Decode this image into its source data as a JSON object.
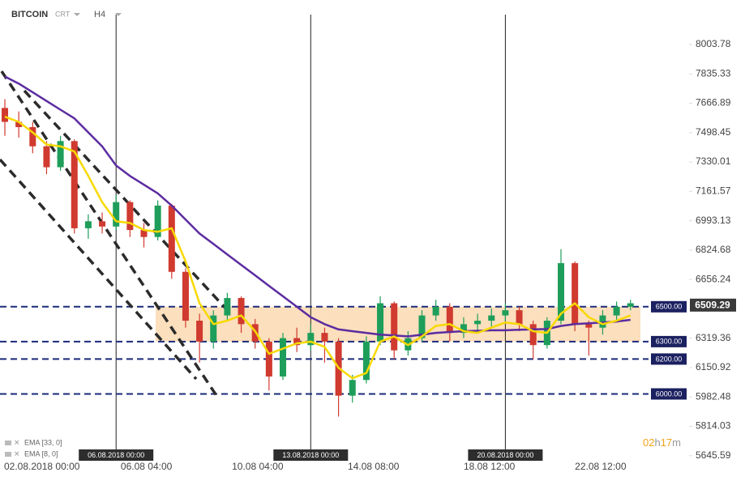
{
  "header": {
    "symbol": "BITCOIN",
    "sub": "CRT",
    "timeframe": "H4"
  },
  "chart_data": {
    "type": "candlestick",
    "x": [
      "02.08 00:00",
      "02.08 12:00",
      "03.08 00:00",
      "03.08 12:00",
      "04.08 00:00",
      "04.08 12:00",
      "05.08 00:00",
      "05.08 12:00",
      "06.08 00:00",
      "06.08 12:00",
      "07.08 00:00",
      "07.08 12:00",
      "08.08 00:00",
      "08.08 12:00",
      "09.08 00:00",
      "09.08 12:00",
      "10.08 00:00",
      "10.08 12:00",
      "11.08 00:00",
      "11.08 12:00",
      "12.08 00:00",
      "12.08 12:00",
      "13.08 00:00",
      "13.08 12:00",
      "14.08 00:00",
      "14.08 12:00",
      "15.08 00:00",
      "15.08 12:00",
      "16.08 00:00",
      "16.08 12:00",
      "17.08 00:00",
      "17.08 12:00",
      "18.08 00:00",
      "18.08 12:00",
      "19.08 00:00",
      "19.08 12:00",
      "20.08 00:00",
      "20.08 12:00",
      "21.08 00:00",
      "21.08 12:00",
      "22.08 00:00",
      "22.08 12:00",
      "23.08 00:00",
      "23.08 12:00",
      "24.08 00:00",
      "24.08 12:00"
    ],
    "open": [
      7640,
      7560,
      7530,
      7420,
      7300,
      7450,
      6950,
      6990,
      6960,
      7100,
      6940,
      6900,
      7080,
      6700,
      6420,
      6300,
      6450,
      6550,
      6400,
      6300,
      6100,
      6320,
      6280,
      6350,
      6300,
      5990,
      6080,
      6300,
      6520,
      6250,
      6320,
      6450,
      6500,
      6350,
      6400,
      6420,
      6450,
      6480,
      6400,
      6280,
      6420,
      6750,
      6400,
      6380,
      6450,
      6500
    ],
    "high": [
      7690,
      7620,
      7560,
      7450,
      7480,
      7460,
      7030,
      7040,
      7140,
      7110,
      6980,
      7110,
      7090,
      6720,
      6460,
      6480,
      6580,
      6560,
      6430,
      6320,
      6350,
      6380,
      6400,
      6380,
      6320,
      6110,
      6330,
      6560,
      6530,
      6360,
      6480,
      6540,
      6520,
      6440,
      6460,
      6490,
      6520,
      6500,
      6420,
      6440,
      6830,
      6760,
      6420,
      6480,
      6530,
      6540
    ],
    "low": [
      7480,
      7470,
      7380,
      7260,
      7280,
      6920,
      6890,
      6920,
      6940,
      6900,
      6840,
      6880,
      6660,
      6380,
      6180,
      6260,
      6420,
      6350,
      6260,
      6020,
      6080,
      6240,
      6250,
      6180,
      5870,
      5950,
      6060,
      6280,
      6200,
      6220,
      6300,
      6420,
      6300,
      6320,
      6360,
      6380,
      6420,
      6360,
      6200,
      6260,
      6400,
      6360,
      6220,
      6340,
      6420,
      6480
    ],
    "close": [
      7560,
      7530,
      7420,
      7300,
      7450,
      6950,
      6990,
      6960,
      7100,
      6940,
      6900,
      7080,
      6700,
      6420,
      6300,
      6450,
      6550,
      6400,
      6300,
      6100,
      6320,
      6280,
      6350,
      6300,
      5990,
      6080,
      6300,
      6520,
      6250,
      6320,
      6450,
      6500,
      6350,
      6400,
      6420,
      6450,
      6480,
      6400,
      6280,
      6420,
      6750,
      6400,
      6380,
      6450,
      6500,
      6520
    ],
    "up_color": "#1e9e5a",
    "down_color": "#d03a2f",
    "indicators": [
      {
        "name": "EMA [33, 0]",
        "color": "#5b2ca0",
        "values": [
          7820,
          7780,
          7730,
          7680,
          7630,
          7580,
          7500,
          7420,
          7310,
          7250,
          7200,
          7150,
          7080,
          7000,
          6920,
          6860,
          6800,
          6740,
          6680,
          6620,
          6560,
          6500,
          6440,
          6400,
          6370,
          6360,
          6350,
          6340,
          6335,
          6330,
          6340,
          6350,
          6355,
          6360,
          6362,
          6365,
          6365,
          6368,
          6370,
          6372,
          6390,
          6400,
          6405,
          6410,
          6415,
          6425
        ]
      },
      {
        "name": "EMA [8, 0]",
        "color": "#f7d900",
        "values": [
          7590,
          7560,
          7500,
          7430,
          7420,
          7390,
          7250,
          7100,
          6990,
          6980,
          6940,
          6930,
          6950,
          6760,
          6520,
          6400,
          6420,
          6450,
          6360,
          6230,
          6260,
          6290,
          6300,
          6270,
          6150,
          6090,
          6120,
          6300,
          6330,
          6280,
          6330,
          6390,
          6400,
          6360,
          6350,
          6380,
          6410,
          6400,
          6360,
          6350,
          6460,
          6520,
          6440,
          6400,
          6420,
          6450
        ]
      }
    ],
    "levels": [
      {
        "value": 6500,
        "label": "6500.00"
      },
      {
        "value": 6300,
        "label": "6300.00"
      },
      {
        "value": 6200,
        "label": "6200.00"
      },
      {
        "value": 6000,
        "label": "6000.00"
      }
    ],
    "last_price": {
      "value": 6509.29,
      "label": "6509.29"
    },
    "vlines": [
      "06.08.2018 00:00",
      "13.08.2018 00:00",
      "20.08.2018 00:00"
    ],
    "ylim": [
      5575,
      8259
    ],
    "yticks": [
      8003.78,
      7835.33,
      7666.89,
      7498.45,
      7330.01,
      7161.57,
      6993.13,
      6824.68,
      6656.24,
      6319.36,
      6150.92,
      5982.48,
      5814.03,
      5645.59
    ],
    "xticks": [
      "02.08.2018 00:00",
      "06.08 04:00",
      "10.08 04:00",
      "14.08 08:00",
      "18.08 12:00",
      "22.08 12:00"
    ],
    "timer": [
      "02",
      "h",
      "17",
      "m"
    ]
  }
}
